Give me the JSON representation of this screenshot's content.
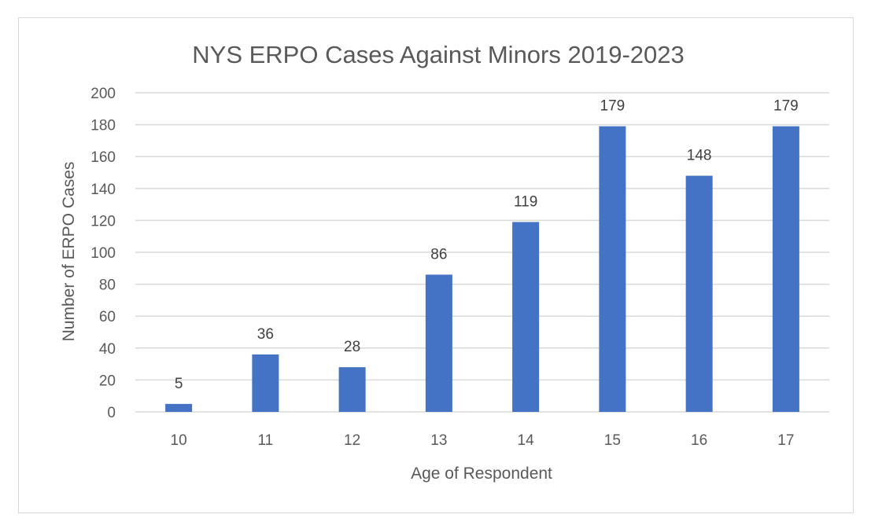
{
  "chart_data": {
    "type": "bar",
    "title": "NYS ERPO Cases Against Minors 2019-2023",
    "xlabel": "Age of Respondent",
    "ylabel": "Number of ERPO Cases",
    "categories": [
      "10",
      "11",
      "12",
      "13",
      "14",
      "15",
      "16",
      "17"
    ],
    "values": [
      5,
      36,
      28,
      86,
      119,
      179,
      148,
      179
    ],
    "ylim": [
      0,
      200
    ],
    "yticks": [
      "0",
      "20",
      "40",
      "60",
      "80",
      "100",
      "120",
      "140",
      "160",
      "180",
      "200"
    ],
    "grid": true,
    "data_labels": true,
    "colors": {
      "bar": "#4472C4",
      "grid": "#d9d9d9",
      "text": "#595959"
    }
  }
}
